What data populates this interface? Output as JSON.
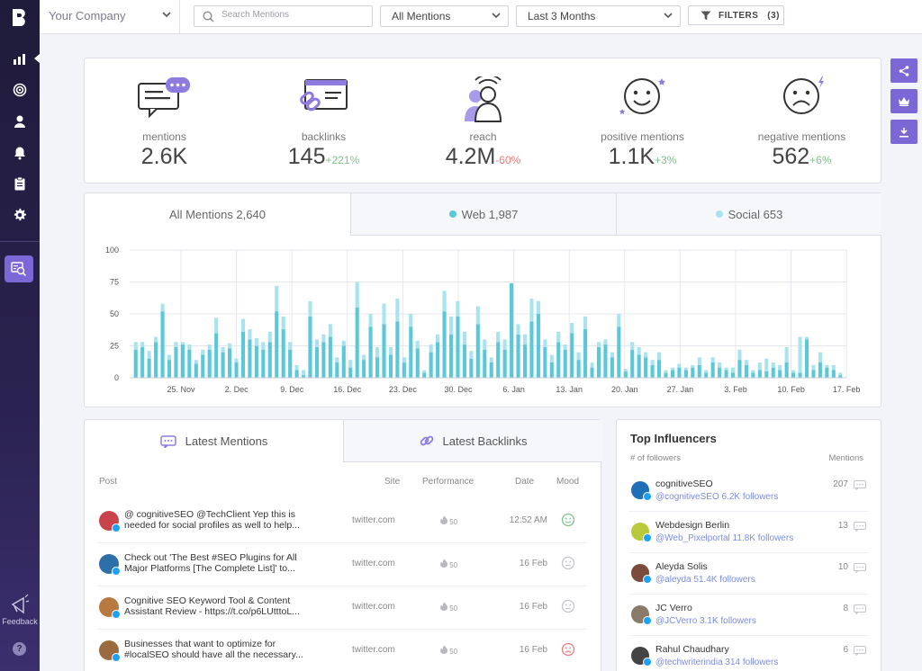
{
  "topbar": {
    "company": "Your Company",
    "search_placeholder": "Search Mentions",
    "mention_filter": "All Mentions",
    "date_range": "Last 3 Months",
    "filters_label": "FILTERS",
    "filters_count": "(3)"
  },
  "sidebar": {
    "items": [
      "bar-chart-icon",
      "target-icon",
      "user-icon",
      "bell-icon",
      "clipboard-icon",
      "gear-icon"
    ],
    "mention_tool": "search-mentions-icon",
    "feedback": "Feedback",
    "help": "?"
  },
  "stats": [
    {
      "label": "mentions",
      "value": "2.6K",
      "change": ""
    },
    {
      "label": "backlinks",
      "value": "145",
      "change": "+221%",
      "trend": "up"
    },
    {
      "label": "reach",
      "value": "4.2M",
      "change": "-60%",
      "trend": "down"
    },
    {
      "label": "positive mentions",
      "value": "1.1K",
      "change": "+3%",
      "trend": "up"
    },
    {
      "label": "negative mentions",
      "value": "562",
      "change": "+6%",
      "trend": "up"
    }
  ],
  "chart_tabs": {
    "all": "All Mentions 2,640",
    "web": "Web 1,987",
    "social": "Social 653"
  },
  "chart_data": {
    "type": "bar",
    "stacked": true,
    "ylim": [
      0,
      100
    ],
    "yticks": [
      0,
      25,
      50,
      75,
      100
    ],
    "grid": true,
    "xtick_labels": [
      "25. Nov",
      "2. Dec",
      "9. Dec",
      "16. Dec",
      "23. Dec",
      "30. Dec",
      "6. Jan",
      "13. Jan",
      "20. Jan",
      "27. Jan",
      "3. Feb",
      "10. Feb",
      "17. Feb"
    ],
    "colors": {
      "web": "#5ac8d8",
      "social": "#a9e3ee"
    },
    "series": [
      {
        "values": [
          22,
          24,
          15,
          28,
          52,
          14,
          24,
          26,
          22,
          11,
          18,
          22,
          35,
          20,
          23,
          12,
          36,
          30,
          25,
          22,
          28,
          52,
          38,
          22,
          6,
          2,
          48,
          24,
          28,
          32,
          12,
          25,
          8,
          55,
          14,
          40,
          16,
          42,
          18,
          44,
          12,
          40,
          23,
          4,
          20,
          28,
          52,
          34,
          48,
          26,
          15,
          42,
          22,
          12,
          28,
          22,
          74,
          34,
          26,
          44,
          50,
          24,
          12,
          28,
          22,
          35,
          14,
          38,
          8,
          24,
          26,
          16,
          40,
          5,
          22,
          18,
          16,
          10,
          14,
          4,
          6,
          8,
          6,
          8,
          10,
          4,
          12,
          8,
          6,
          4,
          14,
          10,
          4,
          6,
          5,
          8,
          6,
          12,
          4,
          4,
          30,
          6,
          12,
          8,
          6,
          2
        ]
      },
      {
        "values": [
          6,
          4,
          6,
          4,
          6,
          4,
          4,
          2,
          4,
          3,
          4,
          4,
          12,
          4,
          4,
          3,
          10,
          8,
          6,
          6,
          8,
          20,
          10,
          6,
          4,
          4,
          12,
          6,
          6,
          10,
          4,
          4,
          6,
          20,
          4,
          10,
          8,
          16,
          6,
          18,
          4,
          10,
          6,
          2,
          6,
          6,
          16,
          14,
          12,
          10,
          6,
          14,
          8,
          4,
          8,
          8,
          0,
          8,
          8,
          18,
          10,
          6,
          6,
          8,
          4,
          8,
          6,
          10,
          4,
          4,
          4,
          4,
          10,
          2,
          6,
          6,
          4,
          4,
          6,
          2,
          2,
          3,
          2,
          2,
          6,
          2,
          4,
          4,
          2,
          4,
          8,
          4,
          2,
          6,
          10,
          4,
          4,
          12,
          2,
          28,
          2,
          4,
          8,
          2,
          4,
          2
        ]
      }
    ]
  },
  "mentions_tabs": {
    "latest_mentions": "Latest Mentions",
    "latest_backlinks": "Latest Backlinks"
  },
  "mentions_table": {
    "headers": {
      "post": "Post",
      "site": "Site",
      "performance": "Performance",
      "date": "Date",
      "mood": "Mood"
    },
    "rows": [
      {
        "text": "@ cognitiveSEO @TechClient Yep this is needed for social profiles as well to help...",
        "site": "twitter.com",
        "performance": "50",
        "date": "12:52 AM",
        "mood": "positive",
        "avatar_color": "#c9444a"
      },
      {
        "text": "Check out 'The Best #SEO Plugins for All Major Platforms [The Complete List]' to...",
        "site": "twitter.com",
        "performance": "50",
        "date": "16 Feb",
        "mood": "neutral",
        "avatar_color": "#2f6fa8"
      },
      {
        "text": "Cognitive SEO Keyword Tool & Content Assistant Review - https://t.co/p6LUtttoL...",
        "site": "twitter.com",
        "performance": "50",
        "date": "16 Feb",
        "mood": "neutral",
        "avatar_color": "#b7793f"
      },
      {
        "text": "Businesses that want to optimize for #localSEO should have all the necessary...",
        "site": "twitter.com",
        "performance": "50",
        "date": "16 Feb",
        "mood": "negative",
        "avatar_color": "#9a6b3f"
      }
    ]
  },
  "influencers": {
    "title": "Top Influencers",
    "col_followers": "# of followers",
    "col_mentions": "Mentions",
    "items": [
      {
        "name": "cognitiveSEO",
        "handle": "@cognitiveSEO 6.2K followers",
        "count": "207",
        "avatar_color": "#1e6fb8"
      },
      {
        "name": "Webdesign Berlin",
        "handle": "@Web_Pixelportal 11.8K followers",
        "count": "13",
        "avatar_color": "#b9c93a"
      },
      {
        "name": "Aleyda Solis",
        "handle": "@aleyda 51.4K followers",
        "count": "10",
        "avatar_color": "#7a4a3a"
      },
      {
        "name": "JC Verro",
        "handle": "@JCVerro 3.1K followers",
        "count": "8",
        "avatar_color": "#8a7a6a"
      },
      {
        "name": "Rahul Chaudhary",
        "handle": "@techwriterindia 314 followers",
        "count": "6",
        "avatar_color": "#444444"
      }
    ]
  }
}
